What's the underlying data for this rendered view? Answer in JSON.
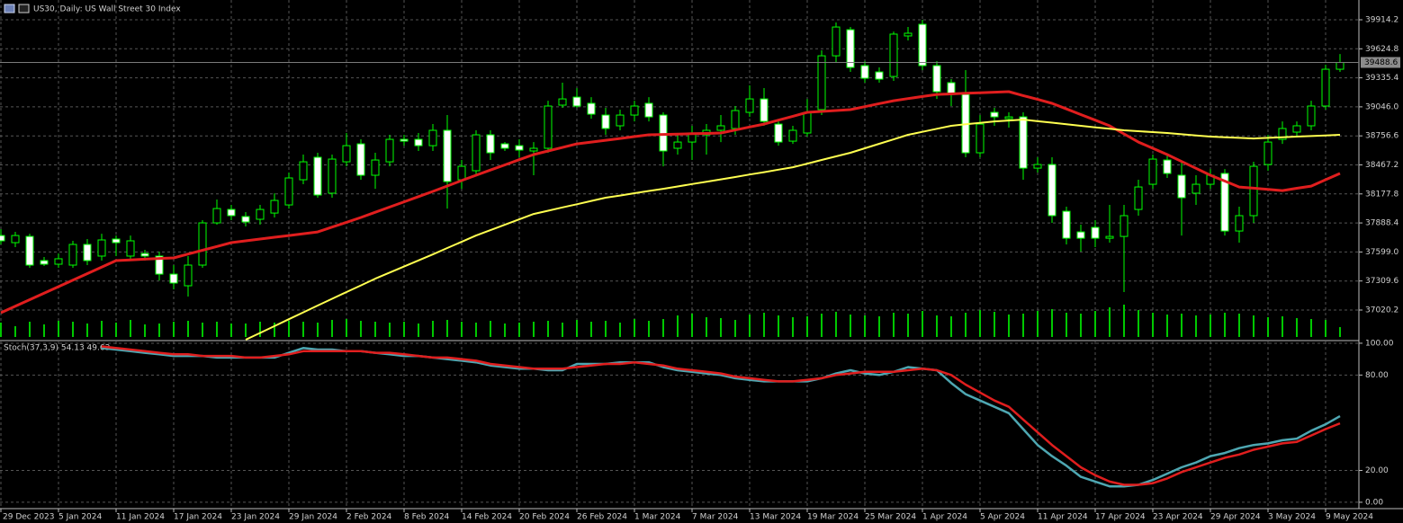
{
  "header": {
    "title": "US30, Daily:  US Wall Street 30 Index"
  },
  "chart_data": [
    {
      "type": "candlestick",
      "categories": [
        "29 Dec 2023",
        null,
        null,
        null,
        "5 Jan 2024",
        null,
        null,
        null,
        "11 Jan 2024",
        null,
        null,
        null,
        "17 Jan 2024",
        null,
        null,
        null,
        "23 Jan 2024",
        null,
        null,
        null,
        "29 Jan 2024",
        null,
        null,
        null,
        "2 Feb 2024",
        null,
        null,
        null,
        "8 Feb 2024",
        null,
        null,
        null,
        "14 Feb 2024",
        null,
        null,
        null,
        "20 Feb 2024",
        null,
        null,
        null,
        "26 Feb 2024",
        null,
        null,
        null,
        "1 Mar 2024",
        null,
        null,
        null,
        "7 Mar 2024",
        null,
        null,
        null,
        "13 Mar 2024",
        null,
        null,
        null,
        "19 Mar 2024",
        null,
        null,
        null,
        "25 Mar 2024",
        null,
        null,
        null,
        "1 Apr 2024",
        null,
        null,
        null,
        "5 Apr 2024",
        null,
        null,
        null,
        "11 Apr 2024",
        null,
        null,
        null,
        "17 Apr 2024",
        null,
        null,
        null,
        "23 Apr 2024",
        null,
        null,
        null,
        "29 Apr 2024",
        null,
        null,
        null,
        "3 May 2024",
        null,
        null,
        null,
        "9 May 2024",
        null
      ],
      "open": [
        37763,
        37692,
        37754,
        37513,
        37477,
        37468,
        37674,
        37558,
        37728,
        37558,
        37584,
        37558,
        37378,
        37262,
        37468,
        37889,
        38023,
        37952,
        37925,
        37987,
        38068,
        38319,
        38543,
        38185,
        38498,
        38677,
        38364,
        38498,
        38722,
        38722,
        38659,
        38812,
        38319,
        38409,
        38767,
        38677,
        38659,
        38606,
        38633,
        39063,
        39143,
        39081,
        38964,
        38857,
        38964,
        39081,
        38964,
        38633,
        38695,
        38767,
        38812,
        38830,
        38991,
        39125,
        38874,
        38704,
        38785,
        39018,
        39555,
        39815,
        39457,
        39394,
        39349,
        39753,
        39869,
        39457,
        39287,
        39170,
        38588,
        38991,
        38928,
        38946,
        38435,
        38471,
        38005,
        37799,
        37844,
        37736,
        37754,
        38023,
        38274,
        38516,
        38364,
        38185,
        38274,
        38382,
        37808,
        37961,
        38471,
        38722,
        38794,
        38857,
        39054,
        39421
      ],
      "high": [
        37826,
        37800,
        37781,
        37549,
        37584,
        37710,
        37728,
        37781,
        37763,
        37763,
        37620,
        37602,
        37468,
        37558,
        37916,
        38122,
        38068,
        37997,
        38068,
        38184,
        38391,
        38570,
        38588,
        38570,
        38785,
        38722,
        38588,
        38767,
        38767,
        38785,
        38875,
        38964,
        38516,
        38812,
        38812,
        38695,
        38722,
        38695,
        39107,
        39287,
        39233,
        39143,
        39036,
        39018,
        39107,
        39143,
        38991,
        38767,
        38857,
        38875,
        38964,
        39054,
        39260,
        39233,
        38901,
        38857,
        39125,
        39609,
        39887,
        39842,
        39502,
        39439,
        39797,
        39842,
        39914,
        39502,
        39323,
        39412,
        38964,
        39036,
        38991,
        38991,
        38543,
        38543,
        38050,
        37871,
        37916,
        38068,
        38068,
        38319,
        38570,
        38570,
        38498,
        38364,
        38426,
        38426,
        38050,
        38498,
        38767,
        38901,
        38901,
        39107,
        39466,
        39573
      ],
      "low": [
        37674,
        37647,
        37441,
        37459,
        37441,
        37441,
        37468,
        37513,
        37558,
        37513,
        37513,
        37315,
        37226,
        37154,
        37441,
        37871,
        37916,
        37853,
        37871,
        37943,
        38032,
        38274,
        38140,
        38140,
        38453,
        38319,
        38229,
        38453,
        38659,
        38606,
        38606,
        38032,
        38229,
        38364,
        38516,
        38606,
        38543,
        38364,
        38588,
        39036,
        39036,
        38928,
        38767,
        38812,
        38901,
        38901,
        38453,
        38570,
        38516,
        38570,
        38695,
        38767,
        38946,
        38857,
        38659,
        38677,
        38749,
        38964,
        39484,
        39394,
        39287,
        39287,
        39305,
        39708,
        39412,
        39125,
        39054,
        38543,
        38543,
        38857,
        38839,
        38319,
        38391,
        37889,
        37674,
        37602,
        37647,
        37692,
        37199,
        37961,
        38229,
        38337,
        37763,
        38068,
        38229,
        37763,
        37692,
        37889,
        38409,
        38677,
        38749,
        38812,
        39018,
        39394
      ],
      "close": [
        37710,
        37763,
        37468,
        37477,
        37531,
        37674,
        37513,
        37719,
        37692,
        37710,
        37558,
        37378,
        37289,
        37468,
        37889,
        38032,
        37961,
        37898,
        38023,
        38113,
        38337,
        38498,
        38167,
        38525,
        38659,
        38364,
        38516,
        38722,
        38704,
        38659,
        38812,
        38301,
        38453,
        38767,
        38588,
        38633,
        38615,
        38633,
        39054,
        39125,
        39054,
        38973,
        38830,
        38964,
        39054,
        38946,
        38606,
        38695,
        38785,
        38812,
        38857,
        39009,
        39125,
        38901,
        38695,
        38812,
        38991,
        39555,
        39842,
        39439,
        39331,
        39322,
        39771,
        39780,
        39457,
        39197,
        39170,
        38588,
        38874,
        38946,
        38946,
        38435,
        38471,
        37961,
        37736,
        37736,
        37736,
        37754,
        37961,
        38247,
        38525,
        38382,
        38140,
        38274,
        38364,
        37808,
        37961,
        38453,
        38695,
        38830,
        38857,
        39054,
        39421,
        39488.6
      ],
      "volumes": [
        16,
        12,
        17,
        14,
        18,
        17,
        15,
        18,
        16,
        19,
        14,
        15,
        17,
        18,
        16,
        17,
        15,
        15,
        17,
        16,
        18,
        17,
        16,
        19,
        20,
        18,
        17,
        16,
        17,
        15,
        18,
        19,
        17,
        16,
        18,
        15,
        16,
        17,
        18,
        16,
        19,
        17,
        18,
        16,
        20,
        18,
        20,
        24,
        26,
        22,
        21,
        19,
        25,
        27,
        24,
        22,
        23,
        26,
        28,
        25,
        24,
        23,
        27,
        26,
        29,
        24,
        23,
        27,
        30,
        28,
        25,
        26,
        29,
        31,
        27,
        26,
        29,
        33,
        36,
        30,
        27,
        25,
        26,
        24,
        25,
        27,
        26,
        24,
        22,
        23,
        21,
        20,
        19,
        11
      ],
      "up_color": "#00ff00",
      "up_fill": "#000000",
      "down_fill": "#ffffff",
      "volume_color": "#00c800",
      "overlays": [
        {
          "color": "#e01e1e",
          "values": [
            36993,
            37058,
            37123,
            37188,
            37253,
            37318,
            37383,
            37448,
            37513,
            37520,
            37527,
            37534,
            37540,
            37578,
            37616,
            37654,
            37692,
            37710,
            37728,
            37746,
            37763,
            37781,
            37799,
            37847,
            37895,
            37943,
            37995,
            38047,
            38099,
            38151,
            38203,
            38257,
            38311,
            38364,
            38416,
            38467,
            38519,
            38570,
            38606,
            38641,
            38677,
            38695,
            38713,
            38731,
            38749,
            38767,
            38771,
            38774,
            38778,
            38781,
            38785,
            38815,
            38845,
            38874,
            38913,
            38952,
            38991,
            39000,
            39009,
            39018,
            39048,
            39078,
            39107,
            39128,
            39149,
            39170,
            39175,
            39181,
            39186,
            39192,
            39197,
            39158,
            39120,
            39081,
            39025,
            38969,
            38913,
            38857,
            38776,
            38695,
            38633,
            38570,
            38501,
            38433,
            38364,
            38306,
            38247,
            38235,
            38223,
            38211,
            38234,
            38256,
            38319,
            38382
          ]
        },
        {
          "color": "#ffff50",
          "values": [
            null,
            null,
            null,
            null,
            null,
            null,
            null,
            null,
            null,
            null,
            null,
            null,
            null,
            null,
            null,
            null,
            null,
            36724,
            36792,
            36860,
            36929,
            36997,
            37065,
            37132,
            37199,
            37266,
            37333,
            37394,
            37454,
            37515,
            37575,
            37638,
            37700,
            37763,
            37817,
            37870,
            37924,
            37978,
            38010,
            38043,
            38075,
            38108,
            38140,
            38162,
            38185,
            38207,
            38229,
            38252,
            38276,
            38299,
            38323,
            38346,
            38371,
            38395,
            38420,
            38444,
            38480,
            38516,
            38552,
            38588,
            38633,
            38678,
            38722,
            38767,
            38797,
            38827,
            38857,
            38872,
            38886,
            38901,
            38910,
            38919,
            38903,
            38888,
            38872,
            38857,
            38842,
            38827,
            38812,
            38803,
            38794,
            38785,
            38773,
            38761,
            38749,
            38743,
            38737,
            38731,
            38737,
            38743,
            38749,
            38755,
            38761,
            38767
          ]
        }
      ],
      "ylim": [
        36724.4,
        40111.3
      ],
      "yticks": [
        39914.2,
        39624.8,
        39335.4,
        {
          "value": 39046,
          "label": "39046.0"
        },
        38756.6,
        38467.2,
        38177.8,
        37888.4,
        {
          "value": 37599,
          "label": "37599.0"
        },
        37309.6,
        37020.2
      ],
      "grid": true
    },
    {
      "type": "line",
      "title": "Stoch(37,3,9) 54.13 49.63",
      "series": [
        {
          "color": "#4ea7b2",
          "values": [
            null,
            null,
            null,
            null,
            null,
            null,
            null,
            97,
            96,
            95,
            94,
            93,
            92,
            92,
            92,
            91,
            91,
            91,
            91,
            91,
            94,
            97,
            96,
            96,
            95,
            95,
            94,
            93,
            92,
            92,
            91,
            90,
            89,
            88,
            86,
            85,
            84,
            84,
            83,
            83,
            87,
            87,
            87,
            88,
            88,
            88,
            85,
            83,
            82,
            81,
            80,
            78,
            77,
            76,
            76,
            76,
            76,
            78,
            81,
            83,
            81,
            80,
            82,
            85,
            84,
            83,
            75,
            68,
            64,
            60,
            56,
            46,
            36,
            29,
            23,
            16,
            13,
            10,
            10,
            11,
            14,
            18,
            22,
            25,
            29,
            31,
            34,
            36,
            37,
            39,
            40,
            45,
            49,
            54.13
          ]
        },
        {
          "color": "#e01e1e",
          "values": [
            null,
            null,
            null,
            null,
            null,
            null,
            null,
            98,
            97,
            96,
            95,
            94,
            93,
            93,
            92,
            92,
            92,
            91,
            91,
            92,
            93,
            95,
            95,
            95,
            95,
            95,
            94,
            94,
            93,
            92,
            91,
            91,
            90,
            89,
            87,
            86,
            85,
            84,
            84,
            84,
            85,
            86,
            87,
            87,
            88,
            87,
            86,
            84,
            83,
            82,
            81,
            79,
            78,
            77,
            76,
            76,
            77,
            78,
            80,
            81,
            82,
            82,
            82,
            83,
            84,
            83,
            80,
            74,
            69,
            64,
            60,
            52,
            44,
            36,
            29,
            22,
            17,
            13,
            11,
            11,
            12,
            15,
            19,
            22,
            25,
            28,
            30,
            33,
            35,
            37,
            38,
            42,
            46,
            49.63
          ]
        }
      ],
      "ylim": [
        -4,
        101.1
      ],
      "yticks": [
        {
          "value": 100,
          "label": "100.00"
        },
        {
          "value": 80,
          "label": "80.00"
        },
        {
          "value": 20,
          "label": "20.00"
        },
        {
          "value": 0,
          "label": "0.00"
        }
      ],
      "grid": true
    }
  ]
}
